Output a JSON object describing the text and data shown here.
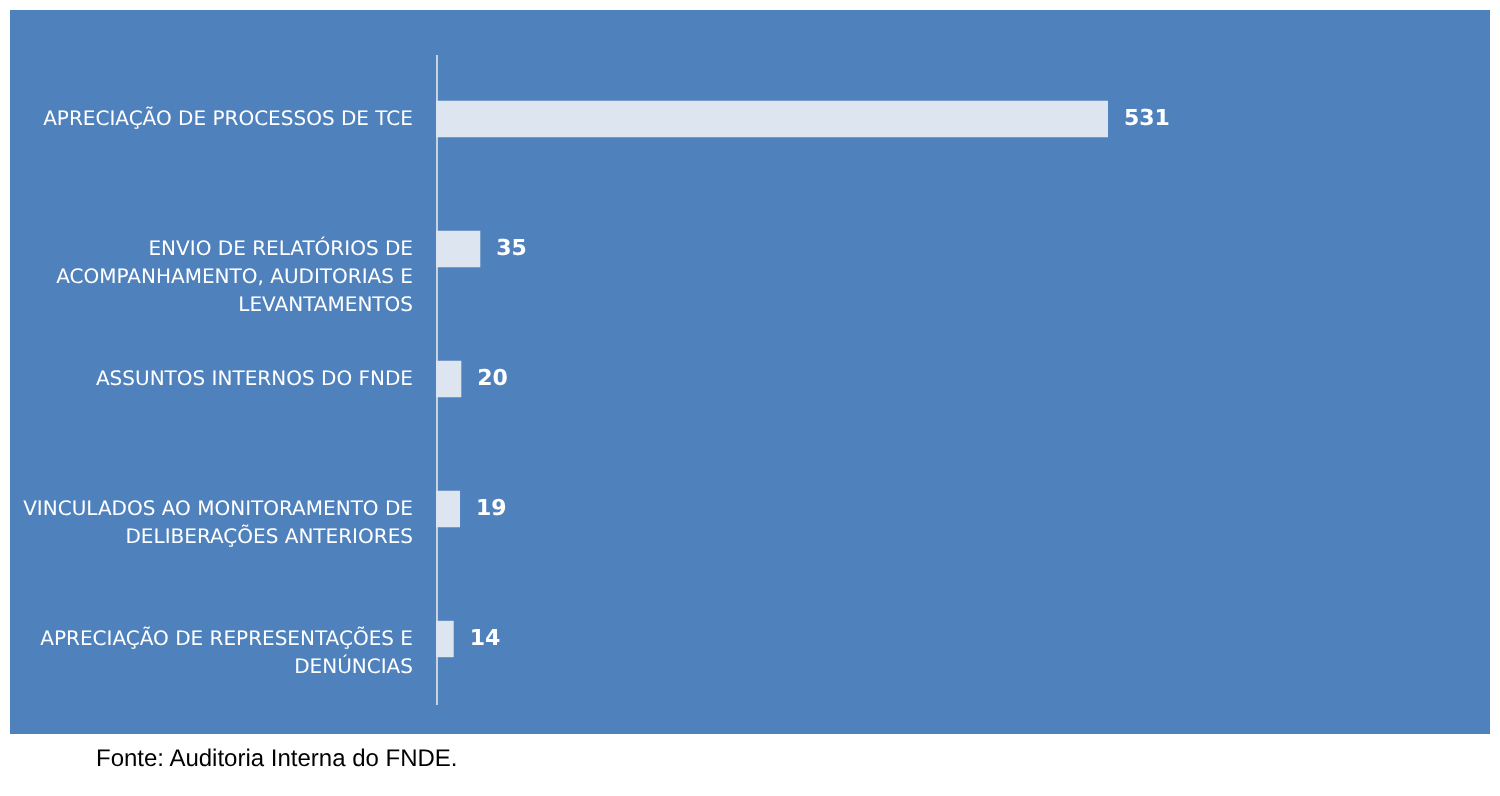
{
  "chart_data": {
    "type": "bar",
    "orientation": "horizontal",
    "categories": [
      "APRECIAÇÃO DE PROCESSOS DE TCE",
      "ENVIO DE RELATÓRIOS DE ACOMPANHAMENTO, AUDITORIAS E LEVANTAMENTOS",
      "ASSUNTOS INTERNOS DO FNDE",
      "VINCULADOS AO MONITORAMENTO DE DELIBERAÇÕES ANTERIORES",
      "APRECIAÇÃO DE REPRESENTAÇÕES E DENÚNCIAS"
    ],
    "values": [
      531,
      35,
      20,
      19,
      14
    ],
    "color": "#dde5f0",
    "data_labels": true,
    "annotations": [
      "Fonte: Auditoria Interna do FNDE."
    ]
  }
}
